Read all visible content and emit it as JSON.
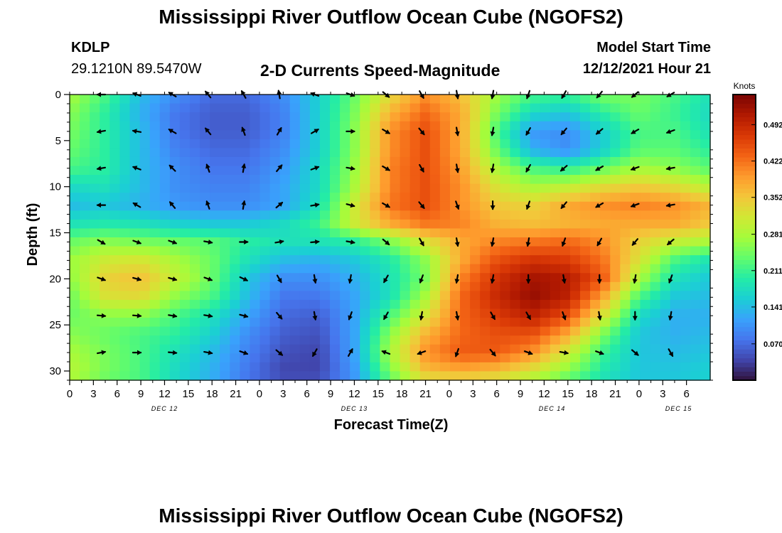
{
  "page": {
    "title": "Mississippi River Outflow Ocean Cube (NGOFS2)",
    "title_repeat": "Mississippi River Outflow Ocean Cube (NGOFS2)"
  },
  "header": {
    "station_id": "KDLP",
    "station_coords": "29.1210N  89.5470W",
    "subtitle": "2-D Currents Speed-Magnitude",
    "model_start_label": "Model Start Time",
    "model_start_value": "12/12/2021 Hour 21"
  },
  "colors": {
    "palette": [
      "#30123b",
      "#4145ab",
      "#4675ed",
      "#39a2fc",
      "#1bcfd4",
      "#24eca6",
      "#61fc6c",
      "#a4fc3b",
      "#d1e834",
      "#f3c63a",
      "#fe9b2d",
      "#f36315",
      "#d93806",
      "#b11901",
      "#7a0403"
    ]
  },
  "chart_data": {
    "type": "heatmap",
    "title": "2-D Currents Speed-Magnitude",
    "xlabel": "Forecast Time(Z)",
    "ylabel": "Depth (ft)",
    "xlim": [
      0,
      81
    ],
    "ylim": [
      31,
      0
    ],
    "x_tick_labels": [
      "0",
      "3",
      "6",
      "9",
      "12",
      "15",
      "18",
      "21",
      "0",
      "3",
      "6",
      "9",
      "12",
      "15",
      "18",
      "21",
      "0",
      "3",
      "6",
      "9",
      "12",
      "15",
      "18",
      "21",
      "0",
      "3",
      "6"
    ],
    "y_ticks": [
      0,
      5,
      10,
      15,
      20,
      25,
      30
    ],
    "y_tick_labels": [
      "0",
      "5",
      "10",
      "15",
      "20",
      "25",
      "30"
    ],
    "day_labels": [
      {
        "text": "DEC 12",
        "at_hour": 12
      },
      {
        "text": "DEC 13",
        "at_hour": 36
      },
      {
        "text": "DEC 14",
        "at_hour": 61
      },
      {
        "text": "DEC 15",
        "at_hour": 77
      }
    ],
    "colorbar": {
      "label": "Knots",
      "range": [
        0.0,
        0.55
      ],
      "ticks": [
        0.07,
        0.141,
        0.211,
        0.281,
        0.352,
        0.422,
        0.492
      ],
      "tick_labels": [
        "0.070",
        "0.141",
        "0.211",
        "0.281",
        "0.352",
        "0.422",
        "0.492"
      ]
    },
    "speed_grid": {
      "units": "Knots",
      "hours": [
        0,
        4.5,
        9,
        13.5,
        18,
        22.5,
        27,
        31.5,
        36,
        40.5,
        45,
        49.5,
        54,
        58.5,
        63,
        67.5,
        72,
        76.5,
        81
      ],
      "depths_ft": [
        0,
        2,
        4,
        6,
        8,
        10,
        12,
        14,
        16,
        18,
        20,
        22,
        24,
        26,
        28,
        30,
        31
      ],
      "values": [
        [
          0.28,
          0.22,
          0.14,
          0.1,
          0.07,
          0.07,
          0.1,
          0.16,
          0.24,
          0.33,
          0.4,
          0.36,
          0.27,
          0.22,
          0.21,
          0.25,
          0.25,
          0.22,
          0.18
        ],
        [
          0.26,
          0.2,
          0.13,
          0.08,
          0.06,
          0.06,
          0.09,
          0.16,
          0.25,
          0.37,
          0.43,
          0.38,
          0.25,
          0.17,
          0.15,
          0.2,
          0.24,
          0.21,
          0.17
        ],
        [
          0.25,
          0.2,
          0.14,
          0.08,
          0.06,
          0.06,
          0.09,
          0.16,
          0.26,
          0.4,
          0.45,
          0.38,
          0.22,
          0.11,
          0.1,
          0.16,
          0.22,
          0.22,
          0.18
        ],
        [
          0.24,
          0.2,
          0.14,
          0.09,
          0.07,
          0.07,
          0.1,
          0.16,
          0.26,
          0.4,
          0.45,
          0.38,
          0.24,
          0.13,
          0.1,
          0.16,
          0.23,
          0.23,
          0.2
        ],
        [
          0.22,
          0.2,
          0.14,
          0.1,
          0.08,
          0.08,
          0.11,
          0.17,
          0.27,
          0.41,
          0.45,
          0.39,
          0.28,
          0.22,
          0.2,
          0.24,
          0.28,
          0.26,
          0.23
        ],
        [
          0.17,
          0.18,
          0.14,
          0.1,
          0.09,
          0.09,
          0.12,
          0.17,
          0.28,
          0.41,
          0.45,
          0.4,
          0.32,
          0.28,
          0.3,
          0.33,
          0.35,
          0.33,
          0.29
        ],
        [
          0.14,
          0.15,
          0.13,
          0.11,
          0.1,
          0.1,
          0.12,
          0.18,
          0.31,
          0.42,
          0.45,
          0.4,
          0.35,
          0.34,
          0.38,
          0.4,
          0.41,
          0.4,
          0.37
        ],
        [
          0.18,
          0.19,
          0.18,
          0.16,
          0.15,
          0.15,
          0.17,
          0.21,
          0.31,
          0.38,
          0.42,
          0.41,
          0.37,
          0.36,
          0.37,
          0.38,
          0.38,
          0.38,
          0.35
        ],
        [
          0.24,
          0.26,
          0.25,
          0.24,
          0.23,
          0.2,
          0.18,
          0.18,
          0.2,
          0.25,
          0.32,
          0.38,
          0.41,
          0.42,
          0.43,
          0.4,
          0.34,
          0.3,
          0.28
        ],
        [
          0.27,
          0.31,
          0.32,
          0.28,
          0.24,
          0.18,
          0.14,
          0.13,
          0.15,
          0.19,
          0.26,
          0.38,
          0.45,
          0.48,
          0.47,
          0.42,
          0.32,
          0.22,
          0.18
        ],
        [
          0.26,
          0.34,
          0.36,
          0.3,
          0.24,
          0.15,
          0.1,
          0.1,
          0.13,
          0.18,
          0.25,
          0.41,
          0.48,
          0.52,
          0.51,
          0.44,
          0.28,
          0.18,
          0.15
        ],
        [
          0.24,
          0.32,
          0.33,
          0.26,
          0.22,
          0.14,
          0.08,
          0.08,
          0.12,
          0.18,
          0.28,
          0.43,
          0.49,
          0.53,
          0.5,
          0.38,
          0.22,
          0.15,
          0.14
        ],
        [
          0.24,
          0.26,
          0.26,
          0.22,
          0.18,
          0.12,
          0.07,
          0.06,
          0.12,
          0.22,
          0.32,
          0.43,
          0.47,
          0.5,
          0.45,
          0.32,
          0.17,
          0.13,
          0.13
        ],
        [
          0.26,
          0.24,
          0.22,
          0.2,
          0.16,
          0.1,
          0.06,
          0.05,
          0.12,
          0.26,
          0.37,
          0.43,
          0.45,
          0.45,
          0.38,
          0.25,
          0.15,
          0.13,
          0.14
        ],
        [
          0.28,
          0.25,
          0.22,
          0.18,
          0.14,
          0.09,
          0.05,
          0.04,
          0.12,
          0.28,
          0.4,
          0.44,
          0.44,
          0.4,
          0.31,
          0.21,
          0.15,
          0.14,
          0.15
        ],
        [
          0.29,
          0.25,
          0.22,
          0.17,
          0.13,
          0.08,
          0.04,
          0.04,
          0.11,
          0.25,
          0.36,
          0.38,
          0.36,
          0.32,
          0.26,
          0.19,
          0.15,
          0.15,
          0.16
        ],
        [
          0.28,
          0.24,
          0.22,
          0.17,
          0.13,
          0.08,
          0.05,
          0.05,
          0.11,
          0.23,
          0.32,
          0.33,
          0.32,
          0.28,
          0.23,
          0.18,
          0.15,
          0.15,
          0.16
        ]
      ]
    },
    "vectors": {
      "hours": [
        4,
        8.5,
        13,
        17.5,
        22,
        26.5,
        31,
        35.5,
        40,
        44.5,
        49,
        53.5,
        58,
        62.5,
        67,
        71.5,
        76
      ],
      "depths_ft": [
        0,
        4,
        8,
        12,
        16,
        20,
        24,
        28
      ],
      "angles_deg": [
        [
          180,
          200,
          210,
          230,
          240,
          260,
          200,
          20,
          40,
          60,
          80,
          100,
          110,
          120,
          130,
          140,
          150
        ],
        [
          170,
          190,
          210,
          230,
          250,
          300,
          330,
          0,
          30,
          50,
          80,
          100,
          120,
          130,
          140,
          150,
          160
        ],
        [
          170,
          200,
          225,
          250,
          280,
          310,
          340,
          10,
          30,
          60,
          80,
          100,
          120,
          140,
          150,
          160,
          170
        ],
        [
          180,
          210,
          230,
          250,
          280,
          320,
          350,
          15,
          30,
          50,
          70,
          90,
          110,
          130,
          150,
          160,
          170
        ],
        [
          30,
          20,
          20,
          10,
          0,
          350,
          355,
          10,
          40,
          60,
          80,
          100,
          100,
          110,
          120,
          130,
          140
        ],
        [
          20,
          15,
          15,
          20,
          25,
          60,
          80,
          100,
          120,
          110,
          100,
          100,
          90,
          80,
          90,
          100,
          110
        ],
        [
          5,
          5,
          10,
          10,
          15,
          50,
          80,
          110,
          120,
          100,
          80,
          60,
          60,
          70,
          80,
          90,
          100
        ],
        [
          350,
          0,
          5,
          10,
          20,
          40,
          120,
          300,
          200,
          160,
          110,
          50,
          20,
          10,
          20,
          40,
          60
        ]
      ]
    }
  }
}
